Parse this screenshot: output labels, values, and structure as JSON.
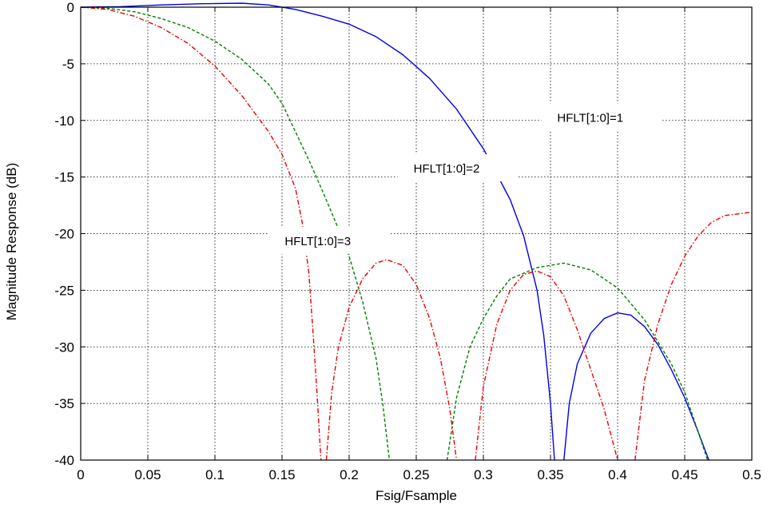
{
  "chart_data": {
    "type": "line",
    "title": "",
    "xlabel": "Fsig/Fsample",
    "ylabel": "Magnitude Response (dB)",
    "xlim": [
      0,
      0.5
    ],
    "ylim": [
      -40,
      0
    ],
    "x_ticks": [
      0,
      0.05,
      0.1,
      0.15,
      0.2,
      0.25,
      0.3,
      0.35,
      0.4,
      0.45,
      0.5
    ],
    "x_tick_labels": [
      "0",
      "0.05",
      "0.1",
      "0.15",
      "0.2",
      "0.25",
      "0.3",
      "0.35",
      "0.4",
      "0.45",
      "0.5"
    ],
    "y_ticks": [
      0,
      -5,
      -10,
      -15,
      -20,
      -25,
      -30,
      -35,
      -40
    ],
    "y_tick_labels": [
      "0",
      "-5",
      "-10",
      "-15",
      "-20",
      "-25",
      "-30",
      "-35",
      "-40"
    ],
    "grid": true,
    "legend": "none",
    "series": [
      {
        "color": "#0000ee",
        "dash": "solid",
        "segments": [
          [
            [
              0,
              0
            ],
            [
              0.03,
              0.05
            ],
            [
              0.06,
              0.2
            ],
            [
              0.09,
              0.3
            ],
            [
              0.12,
              0.35
            ],
            [
              0.14,
              0.2
            ],
            [
              0.16,
              -0.2
            ],
            [
              0.18,
              -0.8
            ],
            [
              0.2,
              -1.5
            ],
            [
              0.22,
              -2.6
            ],
            [
              0.24,
              -4.2
            ],
            [
              0.26,
              -6.3
            ],
            [
              0.28,
              -9.0
            ],
            [
              0.3,
              -12.5
            ],
            [
              0.32,
              -17.0
            ],
            [
              0.33,
              -20.2
            ],
            [
              0.34,
              -25.0
            ],
            [
              0.345,
              -29.0
            ],
            [
              0.35,
              -35.0
            ],
            [
              0.353,
              -40
            ]
          ],
          [
            [
              0.36,
              -40
            ],
            [
              0.364,
              -35.0
            ],
            [
              0.37,
              -31.5
            ],
            [
              0.38,
              -28.8
            ],
            [
              0.39,
              -27.5
            ],
            [
              0.4,
              -27.0
            ],
            [
              0.41,
              -27.2
            ],
            [
              0.42,
              -28.2
            ],
            [
              0.43,
              -29.8
            ],
            [
              0.44,
              -32.0
            ],
            [
              0.45,
              -34.5
            ],
            [
              0.46,
              -37.5
            ],
            [
              0.468,
              -40
            ]
          ]
        ]
      },
      {
        "color": "#008000",
        "dash": "dashed",
        "segments": [
          [
            [
              0,
              0
            ],
            [
              0.02,
              -0.1
            ],
            [
              0.04,
              -0.4
            ],
            [
              0.06,
              -1.0
            ],
            [
              0.08,
              -1.8
            ],
            [
              0.1,
              -3.0
            ],
            [
              0.12,
              -4.6
            ],
            [
              0.14,
              -6.8
            ],
            [
              0.15,
              -8.5
            ],
            [
              0.16,
              -11.0
            ],
            [
              0.17,
              -13.5
            ],
            [
              0.18,
              -16.2
            ],
            [
              0.19,
              -19.0
            ],
            [
              0.2,
              -22.0
            ],
            [
              0.21,
              -26.0
            ],
            [
              0.22,
              -31.0
            ],
            [
              0.225,
              -35.0
            ],
            [
              0.23,
              -40
            ]
          ],
          [
            [
              0.273,
              -40
            ],
            [
              0.28,
              -34.5
            ],
            [
              0.29,
              -30.0
            ],
            [
              0.3,
              -27.5
            ],
            [
              0.31,
              -25.5
            ],
            [
              0.32,
              -24.0
            ],
            [
              0.34,
              -23.0
            ],
            [
              0.36,
              -22.6
            ],
            [
              0.38,
              -23.2
            ],
            [
              0.4,
              -24.8
            ],
            [
              0.42,
              -27.6
            ],
            [
              0.44,
              -31.5
            ],
            [
              0.45,
              -34.0
            ],
            [
              0.46,
              -37.5
            ],
            [
              0.467,
              -40
            ]
          ]
        ]
      },
      {
        "color": "#ee0000",
        "dash": "dashdot",
        "segments": [
          [
            [
              0,
              0
            ],
            [
              0.02,
              -0.2
            ],
            [
              0.04,
              -0.8
            ],
            [
              0.06,
              -1.8
            ],
            [
              0.08,
              -3.2
            ],
            [
              0.1,
              -5.2
            ],
            [
              0.12,
              -7.8
            ],
            [
              0.14,
              -11.0
            ],
            [
              0.15,
              -13.0
            ],
            [
              0.16,
              -16.0
            ],
            [
              0.165,
              -19.0
            ],
            [
              0.17,
              -23.5
            ],
            [
              0.173,
              -28.5
            ],
            [
              0.176,
              -34.0
            ],
            [
              0.179,
              -40
            ]
          ],
          [
            [
              0.183,
              -40
            ],
            [
              0.187,
              -34.0
            ],
            [
              0.192,
              -30.0
            ],
            [
              0.2,
              -26.5
            ],
            [
              0.21,
              -24.0
            ],
            [
              0.22,
              -22.6
            ],
            [
              0.228,
              -22.3
            ],
            [
              0.24,
              -22.8
            ],
            [
              0.25,
              -24.5
            ],
            [
              0.26,
              -27.5
            ],
            [
              0.268,
              -31.0
            ],
            [
              0.275,
              -35.5
            ],
            [
              0.28,
              -40
            ]
          ],
          [
            [
              0.294,
              -40
            ],
            [
              0.3,
              -33.5
            ],
            [
              0.31,
              -28.0
            ],
            [
              0.32,
              -25.0
            ],
            [
              0.33,
              -23.6
            ],
            [
              0.34,
              -23.3
            ],
            [
              0.35,
              -23.8
            ],
            [
              0.36,
              -25.5
            ],
            [
              0.37,
              -28.5
            ],
            [
              0.38,
              -32.0
            ],
            [
              0.39,
              -35.5
            ],
            [
              0.4,
              -40
            ]
          ],
          [
            [
              0.413,
              -40
            ],
            [
              0.42,
              -33.0
            ],
            [
              0.43,
              -28.0
            ],
            [
              0.44,
              -24.5
            ],
            [
              0.45,
              -22.0
            ],
            [
              0.46,
              -20.2
            ],
            [
              0.47,
              -19.0
            ],
            [
              0.48,
              -18.4
            ],
            [
              0.5,
              -18.1
            ]
          ]
        ]
      }
    ],
    "annotations": [
      {
        "text": "HFLT[1:0]=1",
        "x": 0.355,
        "y": -9.9
      },
      {
        "text": "HFLT[1:0]=2",
        "x": 0.248,
        "y": -14.4
      },
      {
        "text": "HFLT[1:0]=3",
        "x": 0.152,
        "y": -20.8
      }
    ]
  }
}
